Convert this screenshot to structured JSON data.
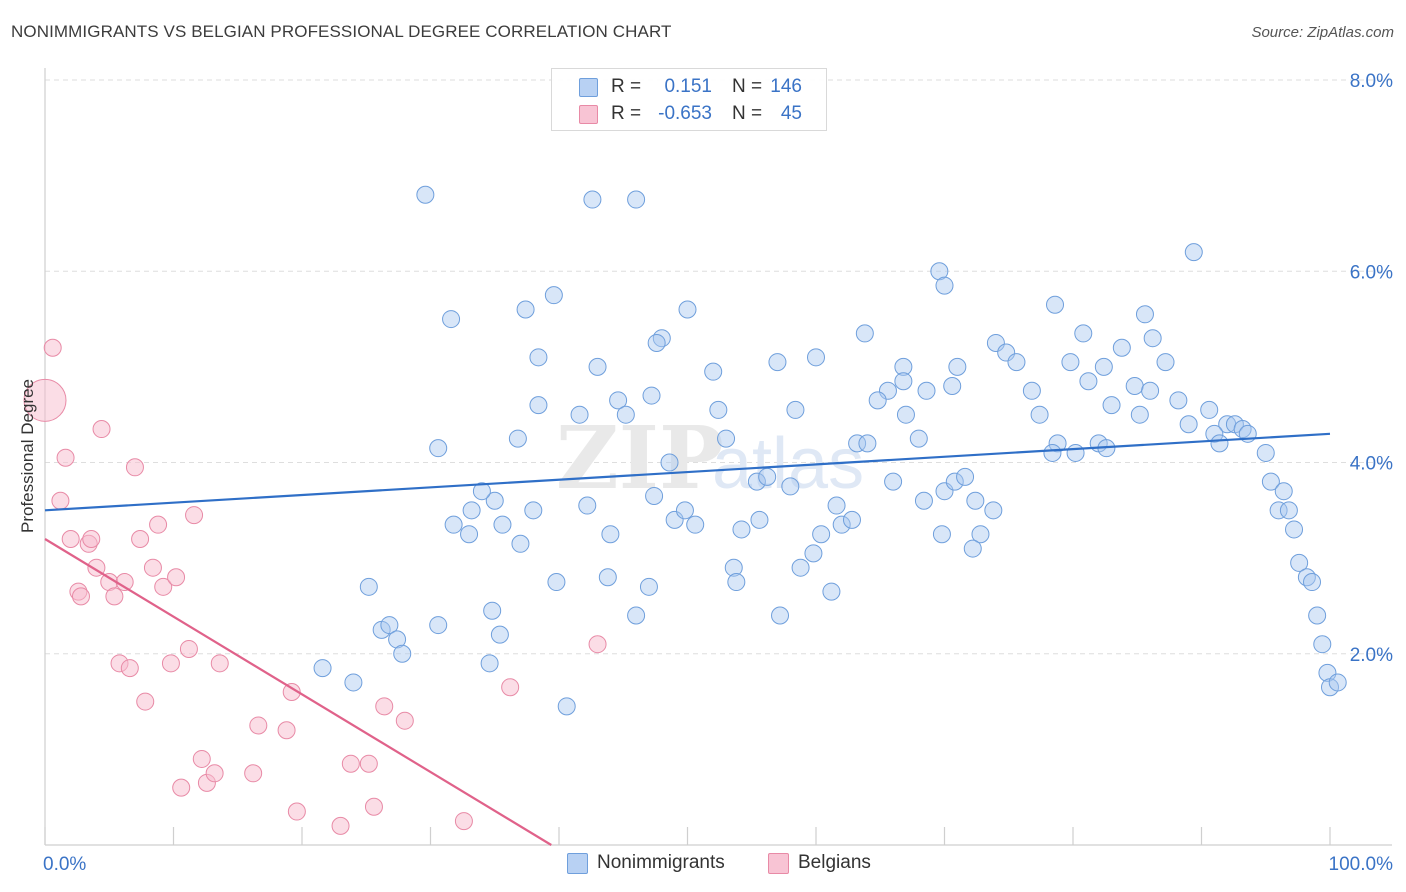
{
  "title": "NONIMMIGRANTS VS BELGIAN PROFESSIONAL DEGREE CORRELATION CHART",
  "source": "Source: ZipAtlas.com",
  "watermark": {
    "bold": "ZIP",
    "light": "atlas"
  },
  "legend": {
    "rows": [
      {
        "r_label": "R =",
        "r_value": "0.151",
        "n_label": "N =",
        "n_value": "146",
        "fill": "#b8d1f3",
        "stroke": "#6f9fdc"
      },
      {
        "r_label": "R =",
        "r_value": "-0.653",
        "n_label": "N =",
        "n_value": "45",
        "fill": "#f8c4d4",
        "stroke": "#e88aa6"
      }
    ]
  },
  "bottom_legend": [
    "Nonimmigrants",
    "Belgians"
  ],
  "colors": {
    "blue_fill": "#a9c7ef",
    "blue_stroke": "#6f9fdc",
    "blue_line": "#2f6fc7",
    "pink_fill": "#f7bccd",
    "pink_stroke": "#e88aa6",
    "pink_line": "#e0628a",
    "tick_text": "#3a73c6",
    "grid": "#dedede"
  },
  "chart_data": {
    "type": "scatter",
    "title": "NONIMMIGRANTS VS BELGIAN PROFESSIONAL DEGREE CORRELATION CHART",
    "xlabel": "",
    "ylabel": "Professional Degree",
    "xlim": [
      0,
      100
    ],
    "ylim": [
      0,
      8
    ],
    "x_tick_labels": [
      "0.0%",
      "100.0%"
    ],
    "y_ticks": [
      2,
      4,
      6,
      8
    ],
    "y_tick_labels": [
      "2.0%",
      "4.0%",
      "6.0%",
      "8.0%"
    ],
    "grid": true,
    "series": [
      {
        "name": "Nonimmigrants",
        "color": "#6f9fdc",
        "trend": {
          "x": [
            0,
            100
          ],
          "y": [
            3.5,
            4.3
          ]
        },
        "points": [
          [
            29.6,
            6.8
          ],
          [
            42.6,
            6.75
          ],
          [
            46.0,
            6.75
          ],
          [
            31.6,
            5.5
          ],
          [
            37.4,
            5.6
          ],
          [
            39.6,
            5.75
          ],
          [
            50.0,
            5.6
          ],
          [
            48.0,
            5.3
          ],
          [
            47.6,
            5.25
          ],
          [
            43.0,
            5.0
          ],
          [
            38.4,
            5.1
          ],
          [
            52.0,
            4.95
          ],
          [
            57.0,
            5.05
          ],
          [
            60.0,
            5.1
          ],
          [
            63.8,
            5.35
          ],
          [
            66.8,
            5.0
          ],
          [
            65.6,
            4.75
          ],
          [
            64.8,
            4.65
          ],
          [
            68.6,
            4.75
          ],
          [
            70.6,
            4.8
          ],
          [
            71.0,
            5.0
          ],
          [
            69.6,
            6.0
          ],
          [
            70.0,
            5.85
          ],
          [
            74.0,
            5.25
          ],
          [
            74.8,
            5.15
          ],
          [
            75.6,
            5.05
          ],
          [
            76.8,
            4.75
          ],
          [
            77.4,
            4.5
          ],
          [
            78.6,
            5.65
          ],
          [
            80.8,
            5.35
          ],
          [
            82.4,
            5.0
          ],
          [
            81.2,
            4.85
          ],
          [
            79.8,
            5.05
          ],
          [
            83.8,
            5.2
          ],
          [
            86.2,
            5.3
          ],
          [
            85.6,
            5.55
          ],
          [
            87.2,
            5.05
          ],
          [
            89.4,
            6.2
          ],
          [
            83.0,
            4.6
          ],
          [
            84.8,
            4.8
          ],
          [
            86.0,
            4.75
          ],
          [
            85.2,
            4.5
          ],
          [
            88.2,
            4.65
          ],
          [
            89.0,
            4.4
          ],
          [
            90.6,
            4.55
          ],
          [
            92.0,
            4.4
          ],
          [
            91.0,
            4.3
          ],
          [
            91.4,
            4.2
          ],
          [
            92.6,
            4.4
          ],
          [
            93.2,
            4.35
          ],
          [
            93.6,
            4.3
          ],
          [
            95.0,
            4.1
          ],
          [
            95.4,
            3.8
          ],
          [
            96.4,
            3.7
          ],
          [
            96.0,
            3.5
          ],
          [
            96.8,
            3.5
          ],
          [
            97.2,
            3.3
          ],
          [
            97.6,
            2.95
          ],
          [
            98.2,
            2.8
          ],
          [
            98.6,
            2.75
          ],
          [
            99.0,
            2.4
          ],
          [
            99.4,
            2.1
          ],
          [
            99.8,
            1.8
          ],
          [
            100.0,
            1.65
          ],
          [
            100.6,
            1.7
          ],
          [
            38.0,
            3.5
          ],
          [
            30.6,
            4.15
          ],
          [
            35.0,
            3.6
          ],
          [
            37.0,
            3.15
          ],
          [
            33.2,
            3.5
          ],
          [
            34.0,
            3.7
          ],
          [
            35.6,
            3.35
          ],
          [
            31.8,
            3.35
          ],
          [
            39.8,
            2.75
          ],
          [
            34.8,
            2.45
          ],
          [
            30.6,
            2.3
          ],
          [
            26.2,
            2.25
          ],
          [
            25.2,
            2.7
          ],
          [
            26.8,
            2.3
          ],
          [
            27.4,
            2.15
          ],
          [
            27.8,
            2.0
          ],
          [
            21.6,
            1.85
          ],
          [
            24.0,
            1.7
          ],
          [
            34.6,
            1.9
          ],
          [
            35.4,
            2.2
          ],
          [
            40.6,
            1.45
          ],
          [
            41.6,
            4.5
          ],
          [
            44.6,
            4.65
          ],
          [
            45.2,
            4.5
          ],
          [
            47.2,
            4.7
          ],
          [
            36.8,
            4.25
          ],
          [
            38.4,
            4.6
          ],
          [
            43.8,
            2.8
          ],
          [
            44.0,
            3.25
          ],
          [
            47.0,
            2.7
          ],
          [
            42.2,
            3.55
          ],
          [
            47.4,
            3.65
          ],
          [
            49.0,
            3.4
          ],
          [
            49.8,
            3.5
          ],
          [
            50.6,
            3.35
          ],
          [
            48.6,
            4.0
          ],
          [
            52.4,
            4.55
          ],
          [
            53.0,
            4.25
          ],
          [
            53.6,
            2.9
          ],
          [
            53.8,
            2.75
          ],
          [
            54.2,
            3.3
          ],
          [
            55.6,
            3.4
          ],
          [
            57.2,
            2.4
          ],
          [
            55.4,
            3.8
          ],
          [
            56.2,
            3.85
          ],
          [
            58.0,
            3.75
          ],
          [
            58.8,
            2.9
          ],
          [
            58.4,
            4.55
          ],
          [
            59.8,
            3.05
          ],
          [
            60.4,
            3.25
          ],
          [
            61.2,
            2.65
          ],
          [
            62.0,
            3.35
          ],
          [
            61.6,
            3.55
          ],
          [
            62.8,
            3.4
          ],
          [
            63.2,
            4.2
          ],
          [
            64.0,
            4.2
          ],
          [
            66.0,
            3.8
          ],
          [
            67.0,
            4.5
          ],
          [
            68.0,
            4.25
          ],
          [
            68.4,
            3.6
          ],
          [
            69.8,
            3.25
          ],
          [
            70.0,
            3.7
          ],
          [
            70.8,
            3.8
          ],
          [
            71.6,
            3.85
          ],
          [
            72.4,
            3.6
          ],
          [
            73.8,
            3.5
          ],
          [
            72.8,
            3.25
          ],
          [
            72.2,
            3.1
          ],
          [
            66.8,
            4.85
          ],
          [
            82.0,
            4.2
          ],
          [
            78.8,
            4.2
          ],
          [
            78.4,
            4.1
          ],
          [
            80.2,
            4.1
          ],
          [
            82.6,
            4.15
          ],
          [
            33.0,
            3.25
          ],
          [
            46.0,
            2.4
          ]
        ]
      },
      {
        "name": "Belgians",
        "color": "#e88aa6",
        "trend": {
          "x": [
            0,
            39.4
          ],
          "y": [
            3.2,
            0.0
          ]
        },
        "points": [
          [
            0.0,
            4.65
          ],
          [
            0.6,
            5.2
          ],
          [
            1.2,
            3.6
          ],
          [
            1.6,
            4.05
          ],
          [
            2.0,
            3.2
          ],
          [
            2.6,
            2.65
          ],
          [
            2.8,
            2.6
          ],
          [
            3.4,
            3.15
          ],
          [
            3.6,
            3.2
          ],
          [
            4.0,
            2.9
          ],
          [
            4.4,
            4.35
          ],
          [
            5.0,
            2.75
          ],
          [
            5.4,
            2.6
          ],
          [
            5.8,
            1.9
          ],
          [
            6.2,
            2.75
          ],
          [
            6.6,
            1.85
          ],
          [
            7.0,
            3.95
          ],
          [
            7.4,
            3.2
          ],
          [
            7.8,
            1.5
          ],
          [
            8.4,
            2.9
          ],
          [
            8.8,
            3.35
          ],
          [
            9.2,
            2.7
          ],
          [
            9.8,
            1.9
          ],
          [
            10.2,
            2.8
          ],
          [
            10.6,
            0.6
          ],
          [
            11.2,
            2.05
          ],
          [
            11.6,
            3.45
          ],
          [
            12.2,
            0.9
          ],
          [
            12.6,
            0.65
          ],
          [
            13.2,
            0.75
          ],
          [
            13.6,
            1.9
          ],
          [
            16.2,
            0.75
          ],
          [
            16.6,
            1.25
          ],
          [
            18.8,
            1.2
          ],
          [
            19.2,
            1.6
          ],
          [
            19.6,
            0.35
          ],
          [
            23.0,
            0.2
          ],
          [
            23.8,
            0.85
          ],
          [
            25.2,
            0.85
          ],
          [
            25.6,
            0.4
          ],
          [
            26.4,
            1.45
          ],
          [
            28.0,
            1.3
          ],
          [
            32.6,
            0.25
          ],
          [
            36.2,
            1.65
          ],
          [
            43.0,
            2.1
          ]
        ]
      }
    ]
  }
}
